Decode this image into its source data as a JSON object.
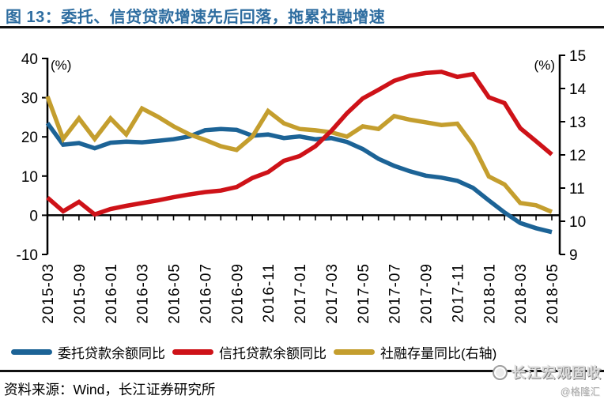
{
  "header": {
    "title": "图 13：委托、信贷贷款增速先后回落，拖累社融增速"
  },
  "chart_data": {
    "type": "line",
    "title": "委托、信贷贷款增速先后回落，拖累社融增速",
    "grid": false,
    "legend_position": "bottom",
    "left_axis": {
      "unit_label": "(%)",
      "ticks": [
        40,
        30,
        20,
        10,
        0,
        -10
      ],
      "min": -10,
      "max": 40
    },
    "right_axis": {
      "unit_label": "(%)",
      "ticks": [
        15,
        14,
        13,
        12,
        11,
        10,
        9
      ],
      "min": 9,
      "max": 15
    },
    "x": [
      "2015-03",
      "2015-06",
      "2015-09",
      "2015-11",
      "2016-01",
      "2016-02",
      "2016-03",
      "2016-04",
      "2016-05",
      "2016-06",
      "2016-07",
      "2016-08",
      "2016-09",
      "2016-10",
      "2016-11",
      "2016-12",
      "2017-01",
      "2017-02",
      "2017-03",
      "2017-04",
      "2017-05",
      "2017-06",
      "2017-07",
      "2017-08",
      "2017-09",
      "2017-10",
      "2017-11",
      "2017-12",
      "2018-01",
      "2018-02",
      "2018-03",
      "2018-04",
      "2018-05"
    ],
    "x_labels_shown": [
      "2015-03",
      "2015-09",
      "2016-01",
      "2016-03",
      "2016-05",
      "2016-07",
      "2016-09",
      "2016-11",
      "2017-01",
      "2017-03",
      "2017-05",
      "2017-07",
      "2017-09",
      "2017-11",
      "2018-01",
      "2018-03",
      "2018-05"
    ],
    "series": [
      {
        "name": "委托贷款余额同比",
        "axis": "left",
        "color": "#1C6396",
        "values": [
          23.5,
          18.0,
          18.4,
          17.1,
          18.5,
          18.8,
          18.6,
          19.0,
          19.4,
          20.1,
          21.7,
          22.0,
          21.8,
          20.3,
          20.6,
          19.7,
          20.1,
          19.4,
          19.7,
          18.7,
          16.9,
          14.4,
          12.6,
          11.2,
          10.1,
          9.6,
          8.8,
          7.0,
          3.8,
          0.7,
          -2.0,
          -3.3,
          -4.3
        ]
      },
      {
        "name": "信托贷款余额同比",
        "axis": "left",
        "color": "#CE1218",
        "values": [
          4.5,
          1.0,
          3.4,
          0.2,
          1.6,
          2.4,
          3.1,
          3.8,
          4.6,
          5.3,
          5.9,
          6.3,
          7.2,
          9.5,
          11.0,
          13.9,
          15.1,
          17.6,
          21.5,
          26.0,
          29.8,
          32.0,
          34.3,
          35.6,
          36.3,
          36.6,
          35.3,
          36.0,
          30.1,
          28.6,
          22.2,
          18.9,
          15.5
        ]
      },
      {
        "name": "社融存量同比(右轴)",
        "axis": "right",
        "color": "#C49E2E",
        "values": [
          13.76,
          12.48,
          13.1,
          12.48,
          13.1,
          12.62,
          13.4,
          13.15,
          12.86,
          12.62,
          12.45,
          12.26,
          12.15,
          12.55,
          13.32,
          12.95,
          12.78,
          12.74,
          12.68,
          12.55,
          12.86,
          12.78,
          13.17,
          13.06,
          12.98,
          12.9,
          12.94,
          12.3,
          11.35,
          11.11,
          10.55,
          10.48,
          10.28
        ]
      }
    ]
  },
  "footer": {
    "source_label": "资料来源：Wind，长江证券研究所"
  },
  "watermark": {
    "brand": "长江宏观固收",
    "handle": "@格隆汇"
  }
}
